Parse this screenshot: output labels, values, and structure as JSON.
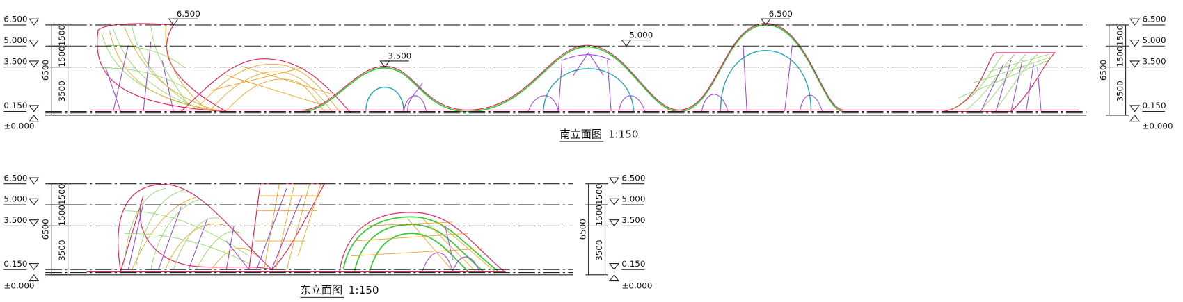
{
  "south_elevation": {
    "title": "南立面图",
    "scale": "1:150",
    "levels": [
      "6.500",
      "5.000",
      "3.500",
      "0.150",
      "±0.000"
    ],
    "dimensions": [
      "1500",
      "1500",
      "3500",
      "6500"
    ],
    "peak_marks": [
      "6.500",
      "3.500",
      "5.000",
      "6.500"
    ]
  },
  "east_elevation": {
    "title": "东立面图",
    "scale": "1:150",
    "levels": [
      "6.500",
      "5.000",
      "3.500",
      "0.150",
      "±0.000"
    ],
    "dimensions": [
      "1500",
      "1500",
      "3500",
      "6500"
    ]
  }
}
